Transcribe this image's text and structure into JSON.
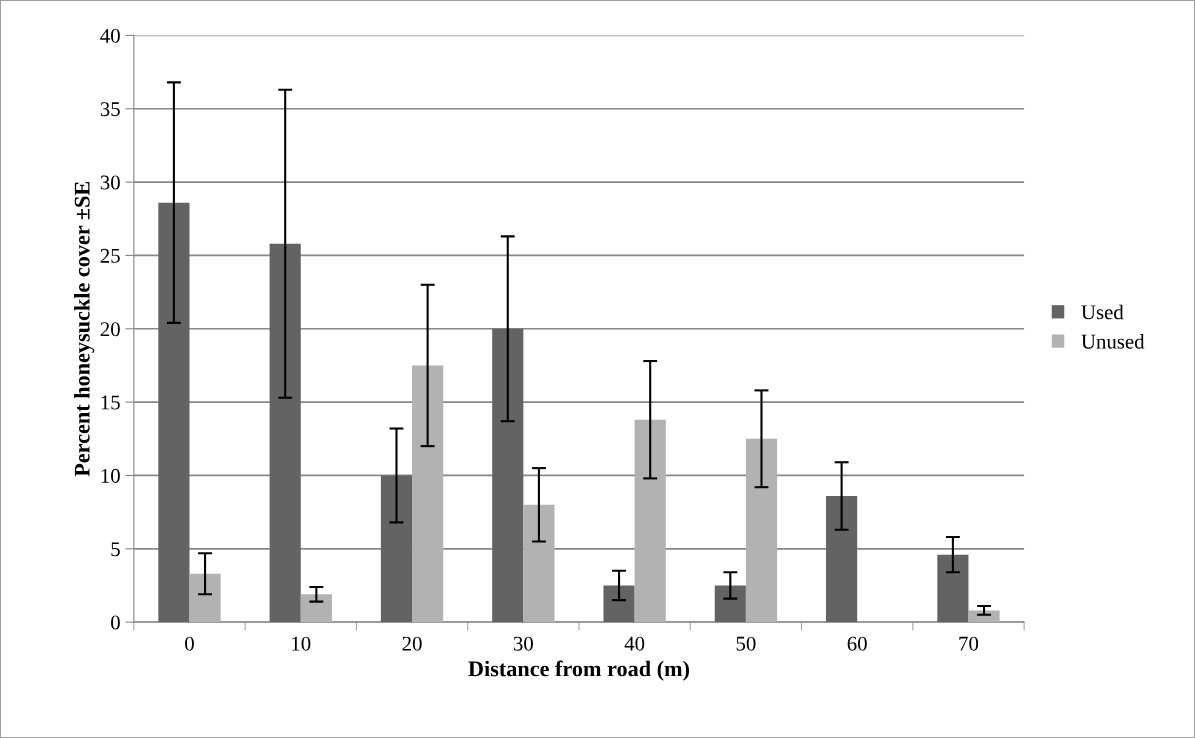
{
  "chart_data": {
    "type": "bar",
    "xlabel": "Distance from road (m)",
    "ylabel": "Percent honeysuckle cover ±SE",
    "categories": [
      "0",
      "10",
      "20",
      "30",
      "40",
      "50",
      "60",
      "70"
    ],
    "series": [
      {
        "name": "Used",
        "color": "#636363",
        "values": [
          28.6,
          25.8,
          10,
          20,
          2.5,
          2.5,
          8.6,
          4.6
        ],
        "errors": [
          8.2,
          10.5,
          3.2,
          6.3,
          1.0,
          0.9,
          2.3,
          1.2
        ]
      },
      {
        "name": "Unused",
        "color": "#b2b2b2",
        "values": [
          3.3,
          1.9,
          17.5,
          8.0,
          13.8,
          12.5,
          0,
          0.8
        ],
        "errors": [
          1.4,
          0.5,
          5.5,
          2.5,
          4.0,
          3.3,
          null,
          0.3
        ]
      }
    ],
    "ylim": [
      0,
      40
    ],
    "yticks": [
      0,
      5,
      10,
      15,
      20,
      25,
      30,
      35,
      40
    ],
    "grid": "y",
    "legend": "right"
  }
}
